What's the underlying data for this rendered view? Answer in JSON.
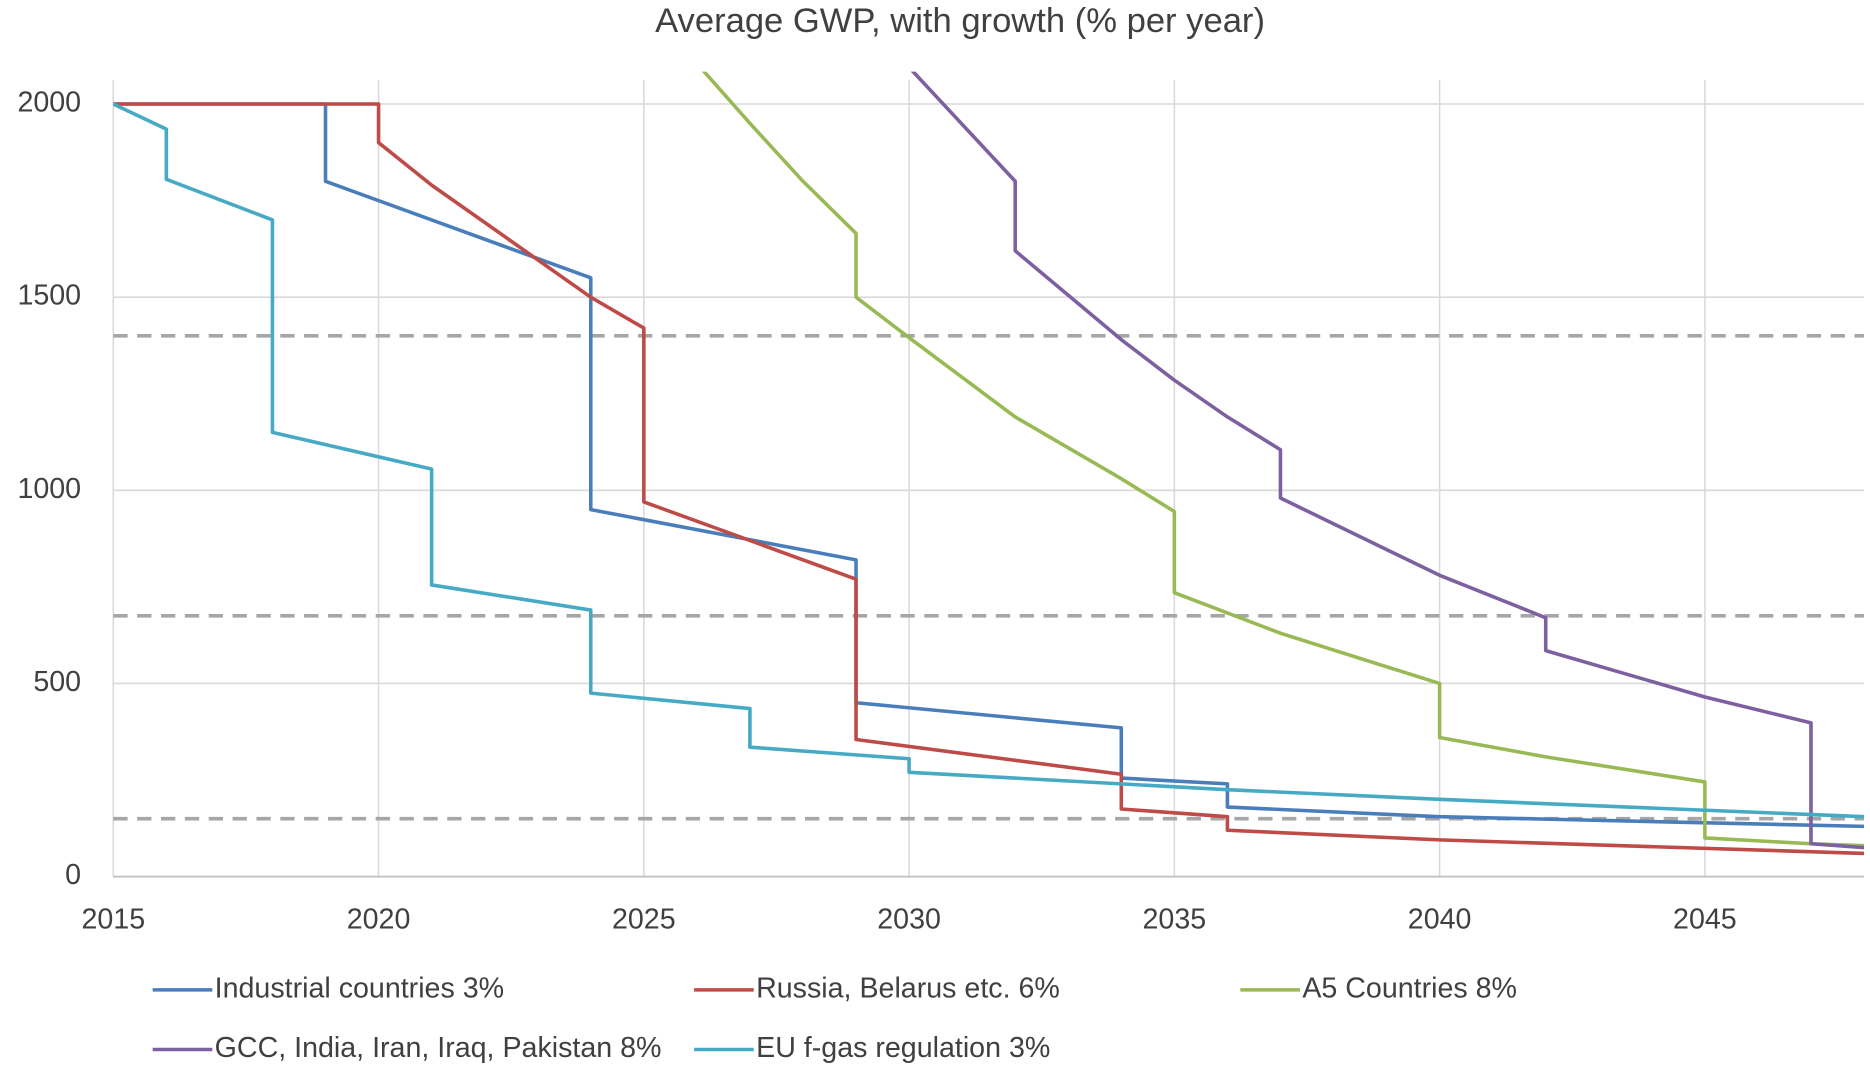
{
  "chart_data": {
    "type": "line",
    "title": "Average GWP, with growth (% per year)",
    "xlim": [
      2015,
      2048
    ],
    "xticks": [
      2015,
      2020,
      2025,
      2030,
      2035,
      2040,
      2045
    ],
    "ylim": [
      0,
      2050
    ],
    "yticks": [
      0,
      500,
      1000,
      1500,
      2000
    ],
    "grid": true,
    "reference_lines": [
      1400,
      675,
      150
    ],
    "reference_color": "#a6a6a6",
    "series": [
      {
        "name": "Industrial countries 3%",
        "color": "#4a7ebb",
        "x": [
          2015,
          2019,
          2019,
          2024,
          2024,
          2029,
          2029,
          2034,
          2034,
          2036,
          2036,
          2040,
          2048
        ],
        "values": [
          2000,
          2000,
          1800,
          1550,
          950,
          820,
          450,
          385,
          255,
          240,
          180,
          155,
          130
        ]
      },
      {
        "name": "Russia, Belarus etc. 6%",
        "color": "#be4b48",
        "x": [
          2015,
          2020,
          2020,
          2021,
          2024,
          2025,
          2025,
          2029,
          2029,
          2034,
          2034,
          2036,
          2036,
          2040,
          2048
        ],
        "values": [
          2000,
          2000,
          1900,
          1790,
          1500,
          1420,
          970,
          770,
          355,
          265,
          175,
          155,
          120,
          95,
          60
        ]
      },
      {
        "name": "A5 Countries 8%",
        "color": "#98b954",
        "x": [
          2026,
          2027,
          2028,
          2029,
          2029,
          2030,
          2032,
          2034,
          2035,
          2035,
          2037,
          2040,
          2040,
          2042,
          2045,
          2045,
          2047,
          2048
        ],
        "values": [
          2105,
          1950,
          1800,
          1665,
          1500,
          1395,
          1190,
          1030,
          945,
          735,
          630,
          500,
          360,
          310,
          245,
          100,
          85,
          80
        ]
      },
      {
        "name": "GCC, India, Iran, Iraq, Pakistan 8%",
        "color": "#7d60a0",
        "x": [
          2030,
          2032,
          2032,
          2034,
          2035,
          2036,
          2037,
          2037,
          2040,
          2042,
          2042,
          2045,
          2047,
          2047,
          2048
        ],
        "values": [
          2095,
          1800,
          1620,
          1390,
          1285,
          1190,
          1105,
          980,
          780,
          670,
          585,
          465,
          398,
          85,
          75
        ]
      },
      {
        "name": "EU f-gas regulation 3%",
        "color": "#46aac5",
        "x": [
          2015,
          2016,
          2016,
          2018,
          2018,
          2021,
          2021,
          2024,
          2024,
          2027,
          2027,
          2030,
          2030,
          2036,
          2040,
          2048
        ],
        "values": [
          2000,
          1935,
          1805,
          1700,
          1150,
          1055,
          755,
          690,
          475,
          435,
          335,
          305,
          270,
          225,
          200,
          155
        ]
      }
    ]
  }
}
